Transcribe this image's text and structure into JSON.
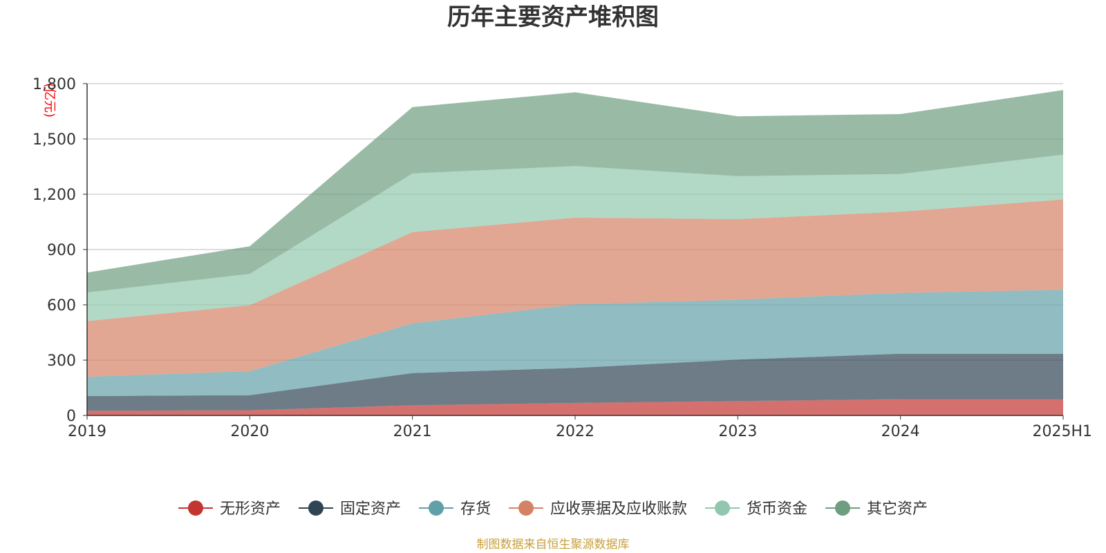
{
  "chart_data": {
    "type": "area",
    "stacked": true,
    "title": "历年主要资产堆积图",
    "y_unit": "(亿元)",
    "x": [
      "2019",
      "2020",
      "2021",
      "2022",
      "2023",
      "2024",
      "2025H1"
    ],
    "ylim": [
      0,
      1800
    ],
    "y_ticks": [
      "0",
      "300",
      "600",
      "900",
      "1,200",
      "1,500",
      "1,800"
    ],
    "grid": true,
    "legend_position": "bottom",
    "series": [
      {
        "name": "无形资产",
        "color": "#c23531",
        "values": [
          25,
          28,
          55,
          68,
          78,
          88,
          88
        ]
      },
      {
        "name": "固定资产",
        "color": "#2f4554",
        "values": [
          80,
          82,
          175,
          190,
          225,
          247,
          246
        ]
      },
      {
        "name": "存货",
        "color": "#61a0a8",
        "values": [
          105,
          130,
          270,
          345,
          325,
          330,
          348
        ]
      },
      {
        "name": "应收票据及应收账款",
        "color": "#d48265",
        "values": [
          302,
          358,
          495,
          470,
          437,
          440,
          490
        ]
      },
      {
        "name": "货币资金",
        "color": "#91c7ae",
        "values": [
          155,
          170,
          318,
          280,
          233,
          205,
          243
        ]
      },
      {
        "name": "其它资产",
        "color": "#6e9e7f",
        "values": [
          108,
          150,
          360,
          400,
          325,
          325,
          350
        ]
      }
    ]
  },
  "source_text": "制图数据来自恒生聚源数据库"
}
